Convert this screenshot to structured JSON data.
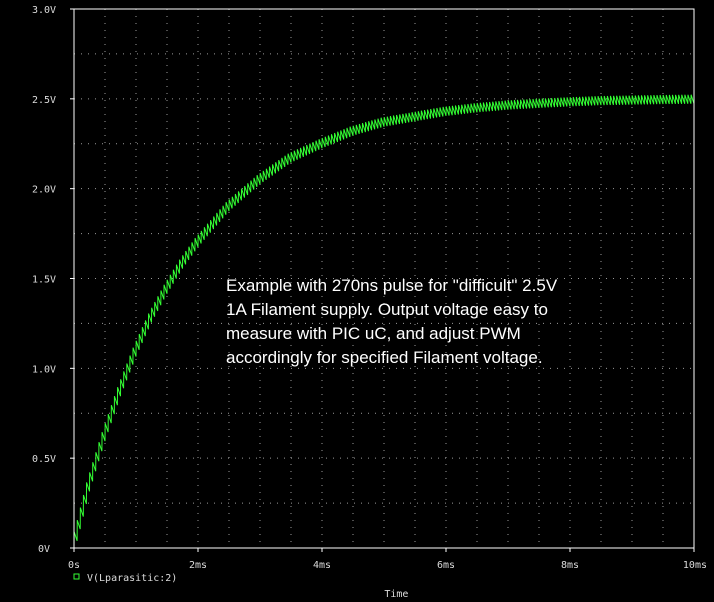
{
  "colors": {
    "background": "#000000",
    "frame": "#ffffff",
    "grid": "#9a9a9a",
    "trace": "#33ff33",
    "text": "#dcdcdc"
  },
  "chart_data": {
    "type": "line",
    "title": "",
    "xlabel": "Time",
    "ylabel": "",
    "x_unit": "ms",
    "xlim": [
      0,
      10
    ],
    "ylim": [
      0,
      3.0
    ],
    "x_ticks": [
      0,
      2,
      4,
      6,
      8,
      10
    ],
    "x_tick_labels": [
      "0s",
      "2ms",
      "4ms",
      "6ms",
      "8ms",
      "10ms"
    ],
    "y_ticks": [
      0,
      0.5,
      1.0,
      1.5,
      2.0,
      2.5,
      3.0
    ],
    "y_tick_labels": [
      "0V",
      "0.5V",
      "1.0V",
      "1.5V",
      "2.0V",
      "2.5V",
      "3.0V"
    ],
    "grid": true,
    "legend_position": "bottom-left",
    "series": [
      {
        "name": "V(Lparasitic:2)",
        "marker": "square",
        "x": [
          0,
          0.1,
          0.25,
          0.5,
          0.75,
          1.0,
          1.25,
          1.5,
          1.75,
          2.0,
          2.5,
          3.0,
          3.5,
          4.0,
          4.5,
          5.0,
          5.5,
          6.0,
          6.5,
          7.0,
          7.5,
          8.0,
          8.5,
          9.0,
          9.5,
          10.0
        ],
        "y": [
          0.0,
          0.13,
          0.34,
          0.62,
          0.87,
          1.09,
          1.28,
          1.44,
          1.58,
          1.7,
          1.9,
          2.05,
          2.17,
          2.25,
          2.32,
          2.37,
          2.4,
          2.43,
          2.45,
          2.465,
          2.475,
          2.483,
          2.49,
          2.493,
          2.496,
          2.498
        ],
        "ripple_v": 0.05,
        "ripple_period_ms": 0.05
      }
    ],
    "annotations": [
      "Example with 270ns pulse for \"difficult\" 2.5V",
      "1A Filament supply. Output voltage easy to",
      "measure with PIC uC, and adjust PWM",
      "accordingly for specified Filament voltage."
    ]
  }
}
